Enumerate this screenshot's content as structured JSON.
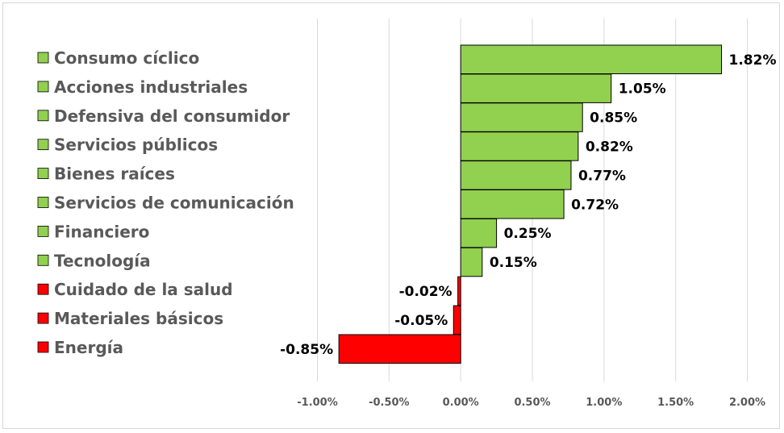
{
  "chart_data": {
    "type": "bar",
    "orientation": "horizontal",
    "title": "",
    "xlabel": "",
    "ylabel": "",
    "categories": [
      "Consumo cíclico",
      "Acciones industriales",
      "Defensiva del consumidor",
      "Servicios públicos",
      "Bienes raíces",
      "Servicios de comunicación",
      "Financiero",
      "Tecnología",
      "Cuidado de la salud",
      "Materiales básicos",
      "Energía"
    ],
    "values": [
      1.82,
      1.05,
      0.85,
      0.82,
      0.77,
      0.72,
      0.25,
      0.15,
      -0.02,
      -0.05,
      -0.85
    ],
    "value_labels": [
      "1.82%",
      "1.05%",
      "0.85%",
      "0.82%",
      "0.77%",
      "0.72%",
      "0.25%",
      "0.15%",
      "-0.02%",
      "-0.05%",
      "-0.85%"
    ],
    "xlim": [
      -1.0,
      2.0
    ],
    "x_ticks": [
      -1.0,
      -0.5,
      0.0,
      0.5,
      1.0,
      1.5,
      2.0
    ],
    "x_tick_labels": [
      "-1.00%",
      "-0.50%",
      "0.00%",
      "0.50%",
      "1.00%",
      "1.50%",
      "2.00%"
    ],
    "grid": "vertical",
    "legend": "left",
    "colors": {
      "positive": "#92d050",
      "negative": "#ff0000",
      "bar_border": "#000000",
      "grid": "#d9d9d9"
    }
  }
}
